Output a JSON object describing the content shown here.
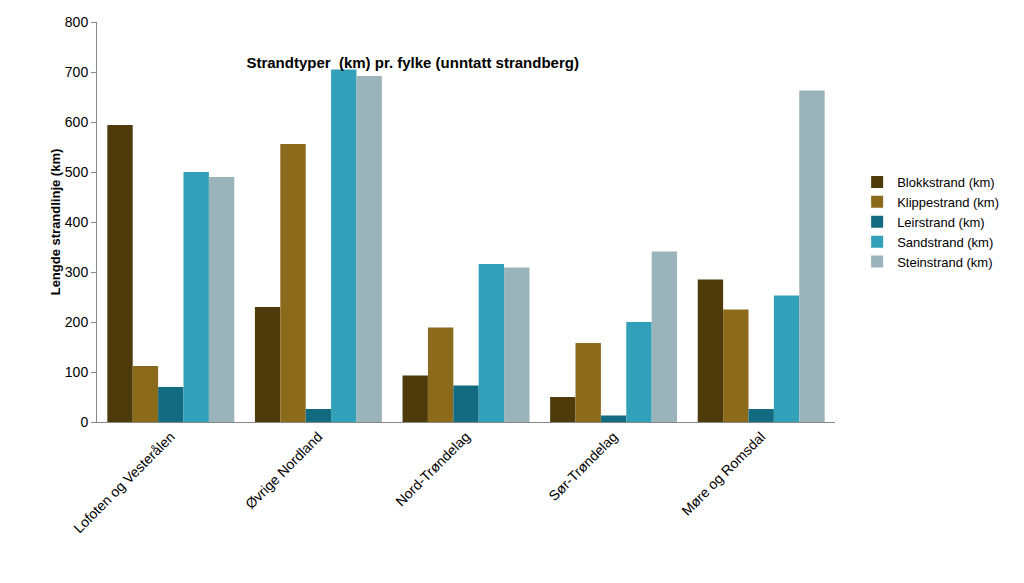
{
  "chart_data": {
    "type": "bar",
    "title": "Strandtyper  (km) pr. fylke (unntatt strandberg)",
    "y_label": "Lengde strandlinje (km)",
    "categories": [
      "Lofoten og Vesterålen",
      "Øvrige Nordland",
      "Nord-Trøndelag",
      "Sør-Trøndelag",
      "Møre og Romsdal"
    ],
    "series": [
      {
        "name": "Blokkstrand (km)",
        "color": "#4e3b0b",
        "values": [
          594,
          230,
          93,
          50,
          285
        ]
      },
      {
        "name": "Klippestrand (km)",
        "color": "#8c6a1c",
        "values": [
          112,
          556,
          189,
          158,
          225
        ]
      },
      {
        "name": "Leirstrand (km)",
        "color": "#136b82",
        "values": [
          70,
          26,
          73,
          13,
          26
        ]
      },
      {
        "name": "Sandstrand (km)",
        "color": "#31a0b8",
        "values": [
          500,
          705,
          316,
          200,
          253
        ]
      },
      {
        "name": "Steinstrand (km)",
        "color": "#9bb3ba",
        "values": [
          490,
          692,
          309,
          341,
          663
        ]
      }
    ],
    "ylim": [
      0,
      800
    ],
    "yticks": [
      0,
      100,
      200,
      300,
      400,
      500,
      600,
      700,
      800
    ],
    "grid": false,
    "legend": "right"
  }
}
